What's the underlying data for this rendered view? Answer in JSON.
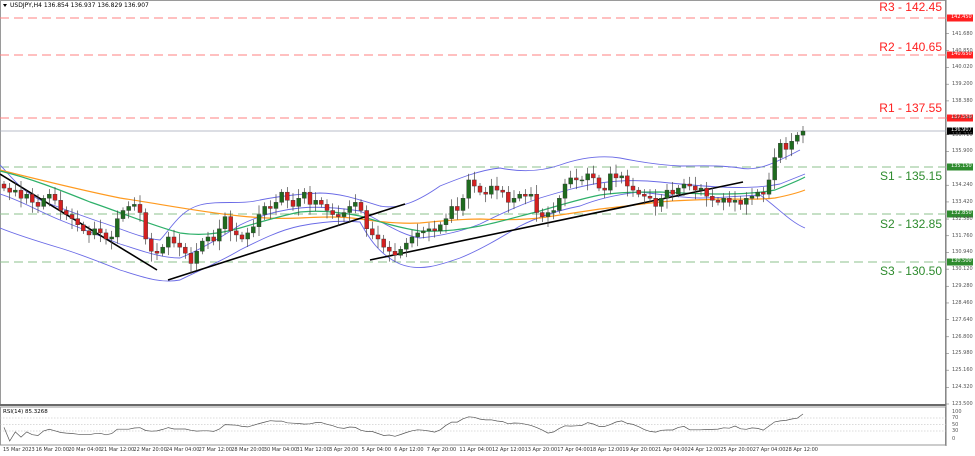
{
  "header": {
    "symbol": "USDJPY,H4",
    "open": "136.854",
    "high": "136.937",
    "low": "136.829",
    "close": "136.907",
    "text": "USDJPY,H4  136.854 136.937 136.829 136.907"
  },
  "rsi": {
    "label": "RSI(14) 85.3268",
    "levels": [
      "100",
      "70",
      "50",
      "30",
      "0"
    ]
  },
  "levels": {
    "resistance": [
      {
        "name": "R3",
        "label": "R3 - 142.45",
        "price": 142.45,
        "tag": "142.450"
      },
      {
        "name": "R2",
        "label": "R2 - 140.65",
        "price": 140.65,
        "tag": "140.650"
      },
      {
        "name": "R1",
        "label": "R1 - 137.55",
        "price": 137.55,
        "tag": "137.550"
      }
    ],
    "support": [
      {
        "name": "S1",
        "label": "S1 - 135.15",
        "price": 135.15,
        "tag": "135.150"
      },
      {
        "name": "S2",
        "label": "S2 - 132.85",
        "price": 132.85,
        "tag": "132.850"
      },
      {
        "name": "S3",
        "label": "S3 - 130.50",
        "price": 130.5,
        "tag": "130.500"
      }
    ]
  },
  "current_price_tag": "136.907",
  "price_axis": [
    "141.680",
    "140.850",
    "140.020",
    "139.200",
    "138.380",
    "137.540",
    "136.720",
    "135.900",
    "134.240",
    "133.420",
    "132.580",
    "131.760",
    "130.940",
    "130.120",
    "129.280",
    "128.460",
    "127.640",
    "126.800",
    "125.980",
    "125.160",
    "124.320",
    "123.500"
  ],
  "time_axis": [
    "15 Mar 2023",
    "16 Mar 20:00",
    "20 Mar 04:00",
    "21 Mar 12:00",
    "22 Mar 20:00",
    "24 Mar 04:00",
    "27 Mar 12:00",
    "28 Mar 20:00",
    "30 Mar 04:00",
    "31 Mar 12:00",
    "3 Apr 20:00",
    "5 Apr 04:00",
    "6 Apr 12:00",
    "7 Apr 20:00",
    "11 Apr 04:00",
    "12 Apr 12:00",
    "13 Apr 20:00",
    "17 Apr 04:00",
    "18 Apr 12:00",
    "19 Apr 20:00",
    "21 Apr 04:00",
    "24 Apr 12:00",
    "25 Apr 20:00",
    "27 Apr 04:00",
    "28 Apr 12:00"
  ],
  "colors": {
    "resistance": "#ff2020",
    "support": "#2e8b2e",
    "bull_candle": "#1e6b1e",
    "bear_candle": "#d42020",
    "bollinger": "#6a6ae6",
    "ma_orange": "#ff9a1f",
    "ma_green": "#2eb06a",
    "trendline": "#000000",
    "current_line": "#a0a8b8"
  },
  "chart_data": {
    "type": "candlestick",
    "title": "USDJPY,H4",
    "xlabel": "",
    "ylabel": "",
    "ylim": [
      123.5,
      142.45
    ],
    "grid": false,
    "horizontal_levels": [
      142.45,
      140.65,
      137.55,
      135.15,
      132.85,
      130.5
    ],
    "last_close": 136.907,
    "close_series": [
      134.1,
      133.9,
      134.0,
      133.6,
      133.8,
      133.4,
      133.2,
      133.6,
      133.8,
      133.5,
      133.0,
      132.8,
      132.6,
      132.3,
      132.0,
      131.8,
      132.1,
      131.9,
      131.6,
      131.7,
      132.6,
      133.0,
      133.2,
      133.3,
      132.9,
      131.6,
      131.0,
      130.9,
      131.2,
      131.7,
      131.4,
      131.2,
      130.9,
      130.4,
      131.0,
      131.5,
      131.7,
      131.5,
      132.1,
      132.7,
      132.0,
      131.8,
      131.6,
      131.9,
      132.2,
      132.8,
      133.2,
      133.1,
      133.4,
      133.9,
      133.5,
      133.2,
      133.6,
      133.9,
      133.3,
      133.5,
      133.3,
      133.0,
      132.8,
      132.7,
      132.9,
      133.2,
      133.4,
      133.0,
      132.1,
      131.8,
      131.6,
      131.2,
      131.0,
      130.8,
      131.1,
      131.4,
      131.7,
      131.9,
      132.0,
      132.1,
      132.0,
      132.3,
      132.6,
      133.2,
      133.0,
      133.6,
      134.5,
      134.2,
      133.9,
      133.8,
      134.2,
      134.0,
      133.9,
      133.4,
      133.6,
      133.8,
      133.7,
      133.8,
      132.9,
      132.7,
      132.9,
      133.0,
      133.6,
      134.3,
      134.6,
      134.5,
      134.5,
      134.8,
      134.6,
      134.1,
      134.0,
      134.8,
      134.6,
      134.7,
      134.2,
      134.0,
      133.8,
      133.7,
      133.6,
      133.2,
      133.6,
      134.0,
      133.8,
      134.1,
      134.3,
      134.2,
      134.0,
      134.1,
      133.7,
      133.5,
      133.4,
      133.6,
      133.4,
      133.5,
      133.3,
      133.6,
      133.7,
      133.9,
      133.8,
      134.5,
      135.6,
      136.3,
      136.0,
      136.4,
      136.7,
      136.9
    ]
  }
}
